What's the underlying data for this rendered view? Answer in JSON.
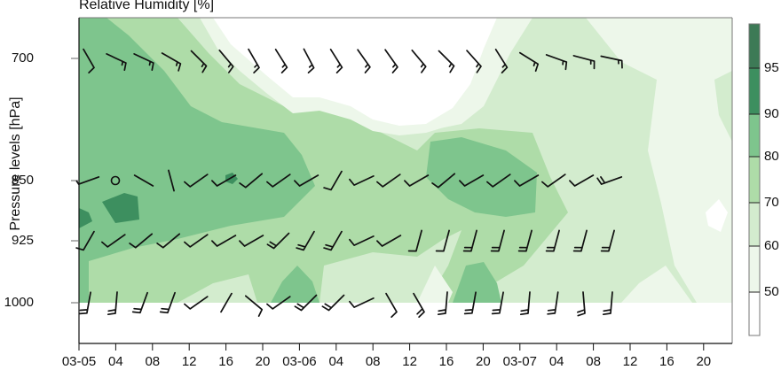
{
  "chart_data": {
    "type": "heatmap",
    "subtype": "filled-contour with wind barbs",
    "title": "Relative Humidity [%]",
    "xlabel": "",
    "ylabel": "Pressure levels [hPa]",
    "x_ticks": [
      "03-05",
      "04",
      "08",
      "12",
      "16",
      "20",
      "03-06",
      "04",
      "08",
      "12",
      "16",
      "20",
      "03-07",
      "04",
      "08",
      "12",
      "16",
      "20"
    ],
    "y_ticks": [
      700,
      850,
      925,
      1000
    ],
    "y_axis": "pressure (inverted, log-like)",
    "colorbar": {
      "levels": [
        50,
        60,
        70,
        80,
        90,
        95
      ],
      "labels": [
        "95",
        "90",
        "80",
        "70",
        "60",
        "50"
      ],
      "colors": [
        "#ffffff",
        "#edf7ea",
        "#d3ecce",
        "#aedca8",
        "#7ec58d",
        "#3d8f5f",
        "#3d7a56"
      ]
    },
    "levels_hpa": [
      700,
      850,
      925,
      1000
    ],
    "rh_summary": {
      "700": "60-80% early on 03-05, drying below 50% from 03-05 14h to 03-06 15h, 50-70% on 03-07",
      "850": "80-95% on 03-05 with >90% pocket near 03-05 04h, 70-80% on 03-06, 80-90% pocket 03-06 16h-20h, 60-70% on 03-07",
      "925": "80-90% on 03-05, 70-80% on 03-06, 50-70% on 03-07 with <50% spot near 03-07 22h",
      "1000": "70-80% mostly, 80-90% pockets near 03-05 20h and 03-06 18h"
    },
    "wind_barbs_note": "barbs every 3 hours at 700, 850, 925, 1000 hPa; calm circle at 850 hPa 03-05 04h"
  },
  "barbs": {
    "700": [
      [
        -60,
        1
      ],
      [
        -25,
        1.5
      ],
      [
        -25,
        1.5
      ],
      [
        -30,
        1.5
      ],
      [
        -45,
        1.5
      ],
      [
        -50,
        1.5
      ],
      [
        -60,
        1.5
      ],
      [
        -58,
        1.5
      ],
      [
        -62,
        1.5
      ],
      [
        -58,
        1.5
      ],
      [
        -55,
        1.5
      ],
      [
        -55,
        1.5
      ],
      [
        -50,
        1.5
      ],
      [
        -45,
        1.5
      ],
      [
        -48,
        1.5
      ],
      [
        -58,
        1.5
      ],
      [
        -32,
        1.5
      ],
      [
        -20,
        1.5
      ],
      [
        -15,
        1.5
      ],
      [
        -12,
        1.5
      ]
    ],
    "850": [
      [
        200,
        0.5
      ],
      [
        0,
        0
      ],
      [
        -30,
        0
      ],
      [
        -75,
        0
      ],
      [
        215,
        1
      ],
      [
        210,
        1
      ],
      [
        220,
        1
      ],
      [
        215,
        1
      ],
      [
        210,
        1
      ],
      [
        240,
        1
      ],
      [
        205,
        1
      ],
      [
        215,
        1
      ],
      [
        210,
        1
      ],
      [
        220,
        1
      ],
      [
        210,
        1
      ],
      [
        215,
        1
      ],
      [
        210,
        1
      ],
      [
        215,
        1
      ],
      [
        210,
        1
      ],
      [
        200,
        2
      ]
    ],
    "925": [
      [
        240,
        1
      ],
      [
        215,
        1
      ],
      [
        220,
        1
      ],
      [
        220,
        1
      ],
      [
        215,
        1
      ],
      [
        210,
        1
      ],
      [
        210,
        1
      ],
      [
        225,
        2
      ],
      [
        240,
        2
      ],
      [
        240,
        2
      ],
      [
        205,
        1
      ],
      [
        210,
        1
      ],
      [
        255,
        1
      ],
      [
        255,
        1
      ],
      [
        255,
        2
      ],
      [
        255,
        2
      ],
      [
        255,
        2
      ],
      [
        255,
        2
      ],
      [
        255,
        2
      ],
      [
        255,
        2
      ]
    ],
    "1000": [
      [
        260,
        2
      ],
      [
        265,
        2
      ],
      [
        250,
        2
      ],
      [
        250,
        2
      ],
      [
        215,
        1
      ],
      [
        240,
        0
      ],
      [
        320,
        1
      ],
      [
        215,
        1
      ],
      [
        225,
        2
      ],
      [
        225,
        2
      ],
      [
        205,
        1
      ],
      [
        300,
        1
      ],
      [
        300,
        2
      ],
      [
        265,
        2
      ],
      [
        260,
        2
      ],
      [
        260,
        2
      ],
      [
        265,
        2
      ],
      [
        262,
        2
      ],
      [
        275,
        2
      ],
      [
        265,
        2
      ]
    ]
  }
}
